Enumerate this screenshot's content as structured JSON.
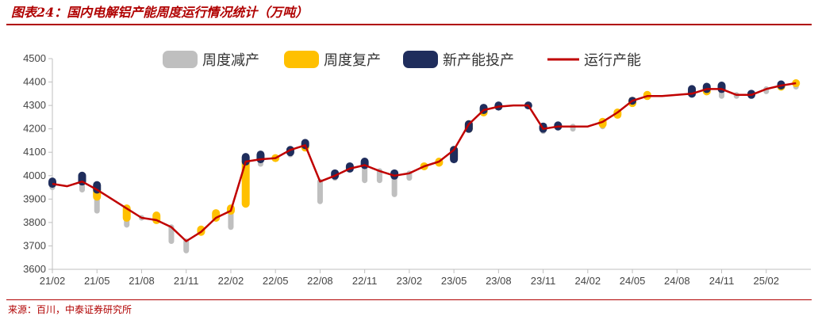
{
  "header": {
    "title": "图表24：国内电解铝产能周度运行情况统计（万吨）"
  },
  "footer": {
    "source": "来源：百川，中泰证券研究所"
  },
  "colors": {
    "cut": "#bfbfbf",
    "resume": "#ffc000",
    "new": "#1f2d5c",
    "running": "#c00000",
    "title": "#b00000",
    "axis": "#bfbfbf"
  },
  "chart_data": {
    "type": "line",
    "title": "",
    "xlabel": "",
    "ylabel": "",
    "ylim": [
      3600,
      4500
    ],
    "yticks": [
      3600,
      3700,
      3800,
      3900,
      4000,
      4100,
      4200,
      4300,
      4400,
      4500
    ],
    "xticks": [
      "21/02",
      "21/05",
      "21/08",
      "21/11",
      "22/02",
      "22/05",
      "22/08",
      "22/11",
      "23/02",
      "23/05",
      "23/08",
      "23/11",
      "24/02",
      "24/05",
      "24/08",
      "24/11",
      "25/02"
    ],
    "xrange_months": [
      "21/02",
      "25/04"
    ],
    "grid": false,
    "legend": {
      "position": "top",
      "items": [
        "周度减产",
        "周度复产",
        "新产能投产",
        "运行产能"
      ]
    },
    "series": [
      {
        "name": "运行产能",
        "style": "line",
        "x": [
          "21/02",
          "21/03",
          "21/04",
          "21/05",
          "21/06",
          "21/07",
          "21/08",
          "21/09",
          "21/10",
          "21/11",
          "21/12",
          "22/01",
          "22/02",
          "22/03",
          "22/04",
          "22/05",
          "22/06",
          "22/07",
          "22/08",
          "22/09",
          "22/10",
          "22/11",
          "22/12",
          "23/01",
          "23/02",
          "23/03",
          "23/04",
          "23/05",
          "23/06",
          "23/07",
          "23/08",
          "23/09",
          "23/10",
          "23/11",
          "23/12",
          "24/01",
          "24/02",
          "24/03",
          "24/04",
          "24/05",
          "24/06",
          "24/07",
          "24/08",
          "24/09",
          "24/10",
          "24/11",
          "24/12",
          "25/01",
          "25/02",
          "25/03",
          "25/04"
        ],
        "values": [
          3965,
          3955,
          3975,
          3940,
          3900,
          3860,
          3820,
          3810,
          3780,
          3720,
          3760,
          3820,
          3850,
          4060,
          4070,
          4075,
          4110,
          4130,
          3975,
          4000,
          4030,
          4045,
          4020,
          4000,
          4010,
          4040,
          4060,
          4110,
          4220,
          4280,
          4295,
          4300,
          4300,
          4200,
          4210,
          4210,
          4210,
          4230,
          4270,
          4320,
          4340,
          4340,
          4345,
          4350,
          4370,
          4370,
          4345,
          4345,
          4370,
          4385,
          4395
        ]
      },
      {
        "name": "周度减产",
        "style": "bar-band",
        "x": [
          "21/02",
          "21/04",
          "21/05",
          "21/07",
          "21/08",
          "21/10",
          "21/11",
          "21/12",
          "22/02",
          "22/04",
          "22/06",
          "22/08",
          "22/09",
          "22/11",
          "22/12",
          "23/01",
          "23/02",
          "23/11",
          "24/01",
          "24/03",
          "24/11",
          "24/12",
          "25/02",
          "25/04"
        ],
        "values": [
          3950,
          3940,
          3850,
          3790,
          3820,
          3720,
          3680,
          3760,
          3780,
          4050,
          4090,
          3890,
          3990,
          3980,
          3980,
          3920,
          3990,
          4190,
          4200,
          4210,
          4340,
          4340,
          4360,
          4380
        ]
      },
      {
        "name": "周度复产",
        "style": "bar-band",
        "x": [
          "21/05",
          "21/07",
          "21/09",
          "21/12",
          "22/01",
          "22/02",
          "22/03",
          "22/05",
          "22/07",
          "23/03",
          "23/04",
          "23/05",
          "23/06",
          "23/07",
          "24/03",
          "24/04",
          "24/05",
          "24/06",
          "24/10",
          "25/03",
          "25/04"
        ],
        "values": [
          3910,
          3820,
          3830,
          3770,
          3840,
          3860,
          3880,
          4075,
          4120,
          4040,
          4055,
          4080,
          4200,
          4270,
          4220,
          4260,
          4310,
          4345,
          4360,
          4380,
          4395
        ]
      },
      {
        "name": "新产能投产",
        "style": "bar-band",
        "x": [
          "21/02",
          "21/04",
          "21/05",
          "22/03",
          "22/04",
          "22/06",
          "22/07",
          "22/09",
          "22/10",
          "22/11",
          "23/01",
          "23/05",
          "23/06",
          "23/07",
          "23/08",
          "23/10",
          "23/11",
          "23/12",
          "24/05",
          "24/09",
          "24/10",
          "24/11",
          "25/01",
          "25/03"
        ],
        "values": [
          3975,
          4000,
          3960,
          4080,
          4090,
          4100,
          4140,
          4010,
          4040,
          4060,
          4010,
          4070,
          4200,
          4290,
          4300,
          4300,
          4210,
          4215,
          4320,
          4370,
          4380,
          4385,
          4350,
          4390
        ]
      }
    ]
  }
}
